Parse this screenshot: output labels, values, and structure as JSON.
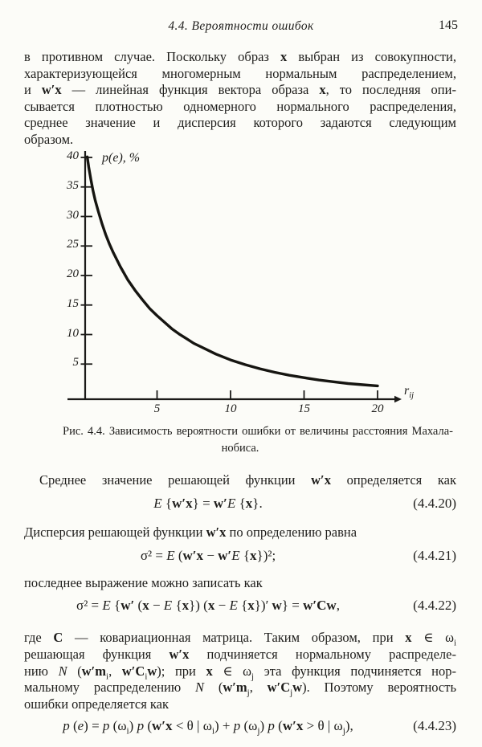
{
  "header": {
    "section_title": "4.4. Вероятности ошибок",
    "page_number": "145"
  },
  "para1": {
    "lines": [
      "в противном случае. Поскольку образ **x** выбран из совокупности,",
      "характеризующейся многомерным нормальным распределением,",
      "и **w′x** — линейная функция вектора образа **x**, то последняя опи-",
      "сывается плотностью одномерного нормального распределения,",
      "среднее значение и дисперсия которого задаются следующим",
      "образом."
    ]
  },
  "figure": {
    "ylabel": "*p*(*e*), %",
    "xlabel": "*r*~ij~"
  },
  "chart_data": {
    "type": "line",
    "title": "Зависимость вероятности ошибки от величины расстояния Махаланобиса",
    "xlabel": "r_ij",
    "ylabel": "p(e), %",
    "xlim": [
      0,
      21.5
    ],
    "ylim": [
      0,
      42
    ],
    "xticks": [
      5,
      10,
      15,
      20
    ],
    "yticks": [
      40,
      35,
      30,
      25,
      20,
      15,
      10,
      5
    ],
    "grid": false,
    "legend": false,
    "points": [
      [
        0.25,
        40.1
      ],
      [
        0.35,
        38.4
      ],
      [
        0.5,
        36.2
      ],
      [
        0.65,
        34.3
      ],
      [
        0.8,
        32.7
      ],
      [
        1,
        30.9
      ],
      [
        1.25,
        28.8
      ],
      [
        1.5,
        27.0
      ],
      [
        1.75,
        25.4
      ],
      [
        2,
        24.0
      ],
      [
        2.5,
        21.5
      ],
      [
        3,
        19.3
      ],
      [
        3.5,
        17.5
      ],
      [
        4,
        15.9
      ],
      [
        4.5,
        14.4
      ],
      [
        5,
        13.2
      ],
      [
        5.5,
        12.1
      ],
      [
        6,
        11.0
      ],
      [
        6.5,
        10.1
      ],
      [
        7,
        9.3
      ],
      [
        7.5,
        8.5
      ],
      [
        8,
        7.9
      ],
      [
        9,
        6.7
      ],
      [
        10,
        5.7
      ],
      [
        11,
        4.9
      ],
      [
        12,
        4.2
      ],
      [
        13,
        3.6
      ],
      [
        14,
        3.1
      ],
      [
        15,
        2.7
      ],
      [
        16,
        2.3
      ],
      [
        17,
        2.0
      ],
      [
        18,
        1.7
      ],
      [
        19,
        1.5
      ],
      [
        20,
        1.3
      ]
    ]
  },
  "caption": {
    "line1": "Рис. 4.4. Зависимость вероятности ошибки от величины расстояния Махала-",
    "line2": "нобиса."
  },
  "body": {
    "p_mean": "Среднее значение решающей функции **w′x** определяется как",
    "p_variance": "Дисперсия решающей функции **w′x** по определению равна",
    "p_rewrite": "последнее выражение можно записать как"
  },
  "equations": {
    "e20": {
      "text": "*E* {**w′x**} = **w′***E* {**x**}.",
      "number": "(4.4.20)"
    },
    "e21": {
      "text": "σ² = *E* (**w′x** − **w′***E* {**x**})²;",
      "number": "(4.4.21)"
    },
    "e22": {
      "text": "σ² = *E* {**w′** (**x** − *E* {**x**}) (**x** − *E* {**x**})′ **w**} = **w′Cw**,",
      "number": "(4.4.22)"
    },
    "e23": {
      "text": "*p* (*e*) = *p* (ω~i~) *p* (**w′x** < θ | ω~i~) + *p* (ω~j~) *p* (**w′x** > θ | ω~j~),",
      "number": "(4.4.23)"
    }
  },
  "para5": {
    "lines": [
      "где **C** — ковариационная матрица. Таким образом, при **x** ∈ ω~i~",
      "решающая функция **w′x** подчиняется нормальному распределе-",
      "нию *N* (**w′m**~i~, **w′C**~i~**w**); при **x** ∈ ω~j~ эта функция подчиняется нор-",
      "мальному распределению *N* (**w′m**~j~, **w′C**~j~**w**). Поэтому вероятность",
      "ошибки определяется как"
    ]
  }
}
